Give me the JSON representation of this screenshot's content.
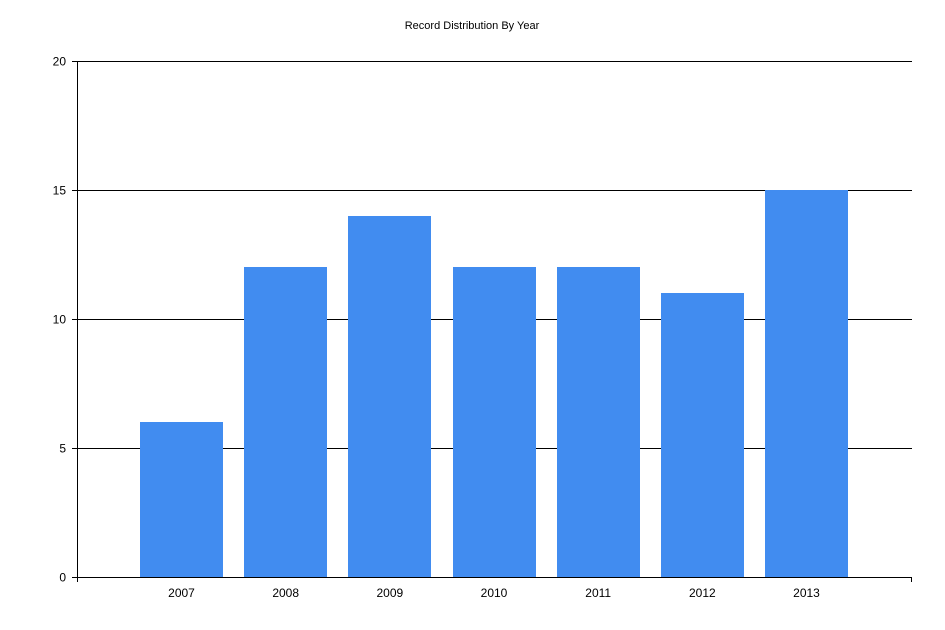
{
  "chart_data": {
    "type": "bar",
    "title": "Record Distribution By Year",
    "xlabel": "",
    "ylabel": "",
    "categories": [
      "2007",
      "2008",
      "2009",
      "2010",
      "2011",
      "2012",
      "2013"
    ],
    "values": [
      6,
      12,
      14,
      12,
      12,
      11,
      15
    ],
    "ylim": [
      0,
      20
    ],
    "yticks": [
      "0",
      "5",
      "10",
      "15",
      "20"
    ],
    "grid": true,
    "legend": "none",
    "bar_color": "#418CF0"
  }
}
